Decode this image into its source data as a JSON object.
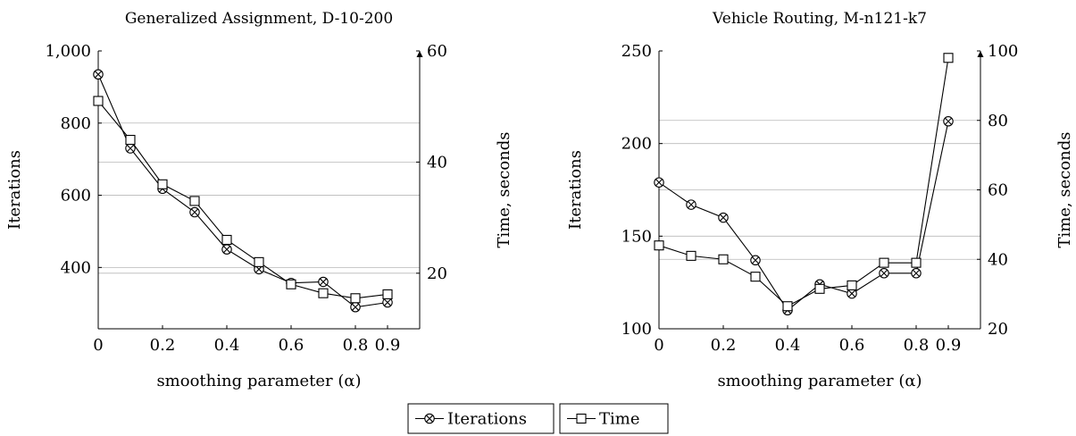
{
  "chart_data": [
    {
      "type": "line",
      "title": "Generalized Assignment, D-10-200",
      "xlabel": "smoothing parameter (α)",
      "ylabel_left": "Iterations",
      "ylabel_right": "Time, seconds",
      "xlim": [
        0,
        1
      ],
      "ylim_left": [
        230,
        1000
      ],
      "ylim_right": [
        10,
        60
      ],
      "x_ticks": [
        0,
        0.2,
        0.4,
        0.6,
        0.8,
        0.9
      ],
      "x_tick_labels": [
        "0",
        "0.2",
        "0.4",
        "0.6",
        "0.8",
        "0.9"
      ],
      "y_left_ticks": [
        400,
        600,
        800,
        1000
      ],
      "y_left_tick_labels": [
        "400",
        "600",
        "800",
        "1,000"
      ],
      "y_right_ticks": [
        20,
        40,
        60
      ],
      "y_right_tick_labels": [
        "20",
        "40",
        "60"
      ],
      "grid": "horizontal",
      "x": [
        0,
        0.1,
        0.2,
        0.3,
        0.4,
        0.5,
        0.6,
        0.7,
        0.8,
        0.9
      ],
      "series": [
        {
          "name": "Iterations",
          "axis": "left",
          "marker": "circle-x",
          "values": [
            935,
            730,
            618,
            553,
            450,
            395,
            357,
            360,
            290,
            303
          ]
        },
        {
          "name": "Time",
          "axis": "right",
          "marker": "square",
          "values": [
            51,
            44,
            36,
            33,
            26,
            22,
            18,
            16.4,
            15.5,
            16.2
          ]
        }
      ]
    },
    {
      "type": "line",
      "title": "Vehicle Routing, M-n121-k7",
      "xlabel": "smoothing parameter (α)",
      "ylabel_left": "Iterations",
      "ylabel_right": "Time, seconds",
      "xlim": [
        0,
        1
      ],
      "ylim_left": [
        100,
        250
      ],
      "ylim_right": [
        20,
        100
      ],
      "x_ticks": [
        0,
        0.2,
        0.4,
        0.6,
        0.8,
        0.9
      ],
      "x_tick_labels": [
        "0",
        "0.2",
        "0.4",
        "0.6",
        "0.8",
        "0.9"
      ],
      "y_left_ticks": [
        100,
        150,
        200,
        250
      ],
      "y_left_tick_labels": [
        "100",
        "150",
        "200",
        "250"
      ],
      "y_right_ticks": [
        20,
        40,
        60,
        80,
        100
      ],
      "y_right_tick_labels": [
        "20",
        "40",
        "60",
        "80",
        "100"
      ],
      "grid": "horizontal",
      "x": [
        0,
        0.1,
        0.2,
        0.3,
        0.4,
        0.5,
        0.6,
        0.7,
        0.8,
        0.9
      ],
      "series": [
        {
          "name": "Iterations",
          "axis": "left",
          "marker": "circle-x",
          "values": [
            179,
            167,
            160,
            137,
            110,
            124,
            119,
            130,
            130,
            212
          ]
        },
        {
          "name": "Time",
          "axis": "right",
          "marker": "square",
          "values": [
            44,
            41,
            40,
            35,
            26.5,
            31.5,
            32.5,
            39,
            39,
            98
          ]
        }
      ]
    }
  ],
  "legend": {
    "items": [
      "Iterations",
      "Time"
    ],
    "placement": "bottom-center"
  }
}
